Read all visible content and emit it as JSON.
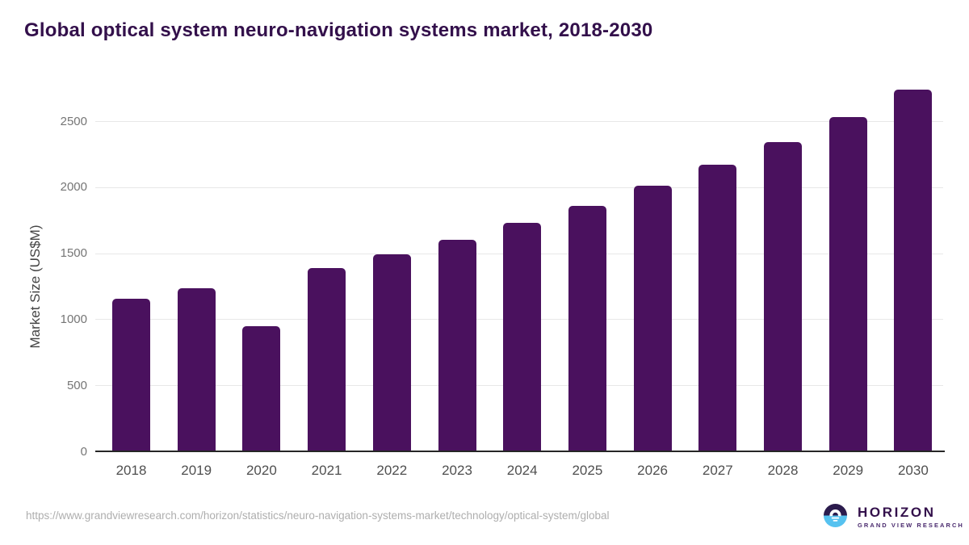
{
  "title": "Global optical system neuro-navigation systems market, 2018-2030",
  "footer": {
    "url": "https://www.grandviewresearch.com/horizon/statistics/neuro-navigation-systems-market/technology/optical-system/global"
  },
  "logo": {
    "name": "HORIZON",
    "subname": "GRAND VIEW RESEARCH",
    "icon": "horizon-sun-over-water-icon",
    "colors": {
      "dark_purple": "#2b1b4d",
      "light_blue": "#56c2f0",
      "text_purple": "#33104b"
    }
  },
  "chart_data": {
    "type": "bar",
    "title": "Global optical system neuro-navigation systems market, 2018-2030",
    "categories": [
      "2018",
      "2019",
      "2020",
      "2021",
      "2022",
      "2023",
      "2024",
      "2025",
      "2026",
      "2027",
      "2028",
      "2029",
      "2030"
    ],
    "values": [
      1155,
      1235,
      950,
      1390,
      1490,
      1600,
      1730,
      1860,
      2010,
      2170,
      2340,
      2530,
      2740
    ],
    "xlabel": "",
    "ylabel": "Market Size (US$M)",
    "ylim": [
      0,
      2750
    ],
    "yticks": [
      0,
      500,
      1000,
      1500,
      2000,
      2500
    ],
    "grid": true,
    "legend_position": "none",
    "bar_color": "#4a115e",
    "axis_color": "#262626",
    "gridline_color": "#e8e8e8",
    "tick_label_color": "#757575"
  }
}
